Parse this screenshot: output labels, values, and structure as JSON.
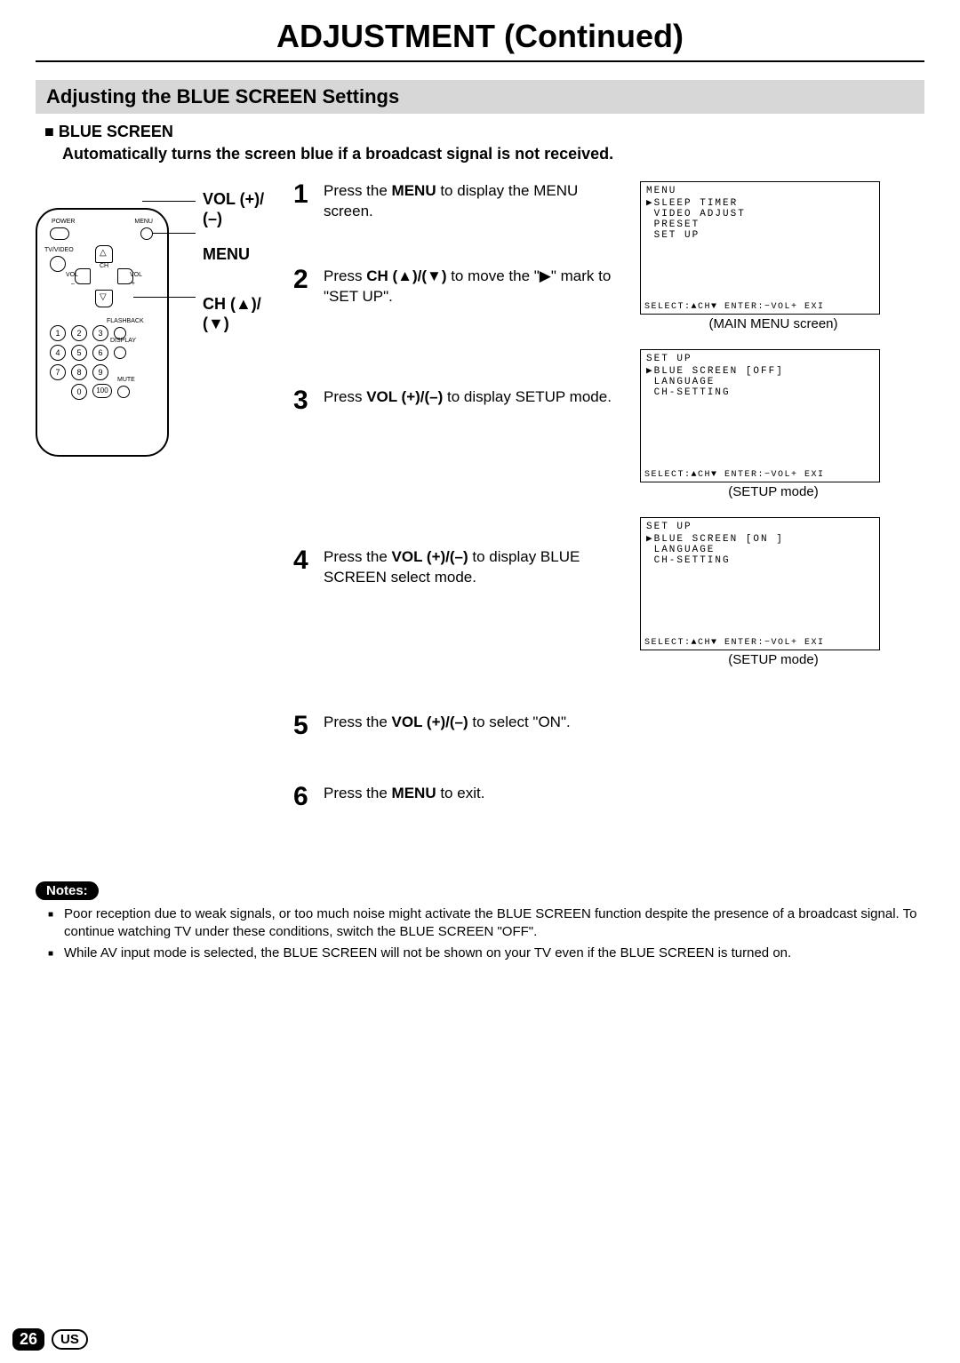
{
  "page": {
    "title": "ADJUSTMENT (Continued)",
    "section_header": "Adjusting the BLUE SCREEN Settings",
    "sub_header": "■  BLUE SCREEN",
    "sub_desc": "Automatically turns the screen blue if a broadcast signal is not received.",
    "page_number": "26",
    "region_badge": "US"
  },
  "remote_labels": {
    "vol": "VOL (+)/",
    "vol2": "(–)",
    "menu": "MENU",
    "ch": "CH (▲)/",
    "ch2": "(▼)",
    "tiny_power": "POWER",
    "tiny_menu": "MENU",
    "tiny_tvvideo": "TV/VIDEO",
    "tiny_ch": "CH",
    "tiny_vol_l": "VOL",
    "tiny_vol_r": "VOL",
    "tiny_flashback": "FLASHBACK",
    "tiny_display": "DISPLAY",
    "tiny_mute": "MUTE",
    "tiny_plus": "+",
    "tiny_minus": "–",
    "tiny_up": "▲",
    "tiny_down": "▽"
  },
  "steps": [
    {
      "num": "1",
      "html": "Press the <b>MENU</b> to display the MENU screen."
    },
    {
      "num": "2",
      "html": "Press <b>CH (▲)/(▼)</b> to move the \"▶\" mark to \"SET UP\"."
    },
    {
      "num": "3",
      "html": "Press <b>VOL (+)/(–)</b> to display SETUP mode."
    },
    {
      "num": "4",
      "html": "Press the <b>VOL (+)/(–)</b> to display BLUE SCREEN select mode."
    },
    {
      "num": "5",
      "html": "Press the <b>VOL (+)/(–)</b> to select \"ON\"."
    },
    {
      "num": "6",
      "html": "Press the <b>MENU</b> to exit."
    }
  ],
  "osd": {
    "footer": "SELECT:▲CH▼ ENTER:−VOL+ EXI",
    "screens": [
      {
        "caption": "(MAIN MENU screen)",
        "lines": [
          "MENU",
          "▶SLEEP TIMER",
          " VIDEO ADJUST",
          " PRESET",
          " SET UP"
        ]
      },
      {
        "caption": "(SETUP mode)",
        "lines": [
          "SET UP",
          "▶BLUE SCREEN [OFF]",
          " LANGUAGE",
          " CH-SETTING"
        ]
      },
      {
        "caption": "(SETUP mode)",
        "lines": [
          "SET UP",
          "▶BLUE SCREEN [ON ]",
          " LANGUAGE",
          " CH-SETTING"
        ]
      }
    ]
  },
  "notes": {
    "label": "Notes:",
    "items": [
      "Poor reception due to weak signals, or too much noise might activate the BLUE SCREEN function despite the presence of a broadcast signal. To continue watching TV under these conditions, switch the BLUE SCREEN \"OFF\".",
      "While AV input mode is selected, the BLUE SCREEN will not be shown on your TV even if the BLUE SCREEN is turned on."
    ]
  }
}
